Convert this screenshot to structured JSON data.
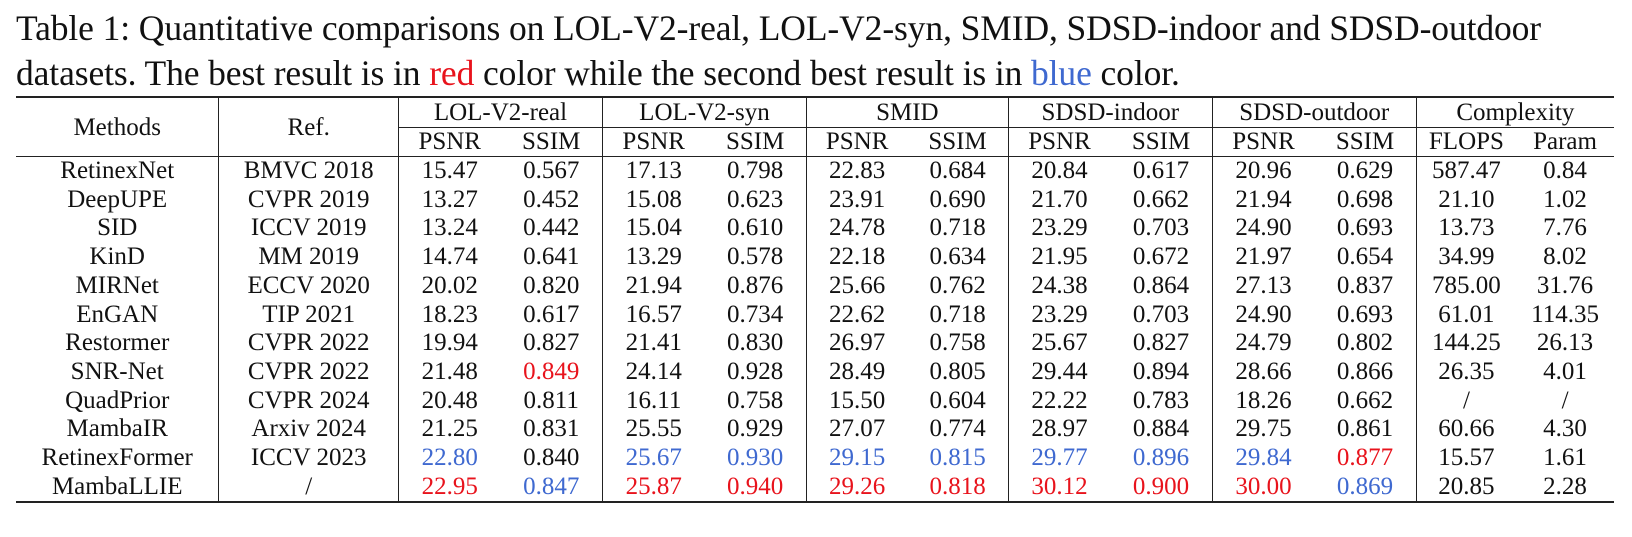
{
  "caption": {
    "prefix": "Table 1: Quantitative comparisons on LOL-V2-real, LOL-V2-syn, SMID, SDSD-indoor and SDSD-outdoor datasets. The best result is in ",
    "red_word": "red",
    "middle": " color while the second best result is in ",
    "blue_word": "blue",
    "suffix": " color."
  },
  "header": {
    "methods": "Methods",
    "ref": "Ref.",
    "groups": [
      "LOL-V2-real",
      "LOL-V2-syn",
      "SMID",
      "SDSD-indoor",
      "SDSD-outdoor",
      "Complexity"
    ],
    "subcols": [
      "PSNR",
      "SSIM",
      "PSNR",
      "SSIM",
      "PSNR",
      "SSIM",
      "PSNR",
      "SSIM",
      "PSNR",
      "SSIM",
      "FLOPS",
      "Param"
    ]
  },
  "highlight_colors": {
    "best": "#e8131c",
    "second": "#3f69d0"
  },
  "rows": [
    {
      "method": "RetinexNet",
      "ref": "BMVC 2018",
      "cells": [
        {
          "v": "15.47"
        },
        {
          "v": "0.567"
        },
        {
          "v": "17.13"
        },
        {
          "v": "0.798"
        },
        {
          "v": "22.83"
        },
        {
          "v": "0.684"
        },
        {
          "v": "20.84"
        },
        {
          "v": "0.617"
        },
        {
          "v": "20.96"
        },
        {
          "v": "0.629"
        },
        {
          "v": "587.47"
        },
        {
          "v": "0.84"
        }
      ]
    },
    {
      "method": "DeepUPE",
      "ref": "CVPR 2019",
      "cells": [
        {
          "v": "13.27"
        },
        {
          "v": "0.452"
        },
        {
          "v": "15.08"
        },
        {
          "v": "0.623"
        },
        {
          "v": "23.91"
        },
        {
          "v": "0.690"
        },
        {
          "v": "21.70"
        },
        {
          "v": "0.662"
        },
        {
          "v": "21.94"
        },
        {
          "v": "0.698"
        },
        {
          "v": "21.10"
        },
        {
          "v": "1.02"
        }
      ]
    },
    {
      "method": "SID",
      "ref": "ICCV 2019",
      "cells": [
        {
          "v": "13.24"
        },
        {
          "v": "0.442"
        },
        {
          "v": "15.04"
        },
        {
          "v": "0.610"
        },
        {
          "v": "24.78"
        },
        {
          "v": "0.718"
        },
        {
          "v": "23.29"
        },
        {
          "v": "0.703"
        },
        {
          "v": "24.90"
        },
        {
          "v": "0.693"
        },
        {
          "v": "13.73"
        },
        {
          "v": "7.76"
        }
      ]
    },
    {
      "method": "KinD",
      "ref": "MM 2019",
      "cells": [
        {
          "v": "14.74"
        },
        {
          "v": "0.641"
        },
        {
          "v": "13.29"
        },
        {
          "v": "0.578"
        },
        {
          "v": "22.18"
        },
        {
          "v": "0.634"
        },
        {
          "v": "21.95"
        },
        {
          "v": "0.672"
        },
        {
          "v": "21.97"
        },
        {
          "v": "0.654"
        },
        {
          "v": "34.99"
        },
        {
          "v": "8.02"
        }
      ]
    },
    {
      "method": "MIRNet",
      "ref": "ECCV 2020",
      "cells": [
        {
          "v": "20.02"
        },
        {
          "v": "0.820"
        },
        {
          "v": "21.94"
        },
        {
          "v": "0.876"
        },
        {
          "v": "25.66"
        },
        {
          "v": "0.762"
        },
        {
          "v": "24.38"
        },
        {
          "v": "0.864"
        },
        {
          "v": "27.13"
        },
        {
          "v": "0.837"
        },
        {
          "v": "785.00"
        },
        {
          "v": "31.76"
        }
      ]
    },
    {
      "method": "EnGAN",
      "ref": "TIP 2021",
      "cells": [
        {
          "v": "18.23"
        },
        {
          "v": "0.617"
        },
        {
          "v": "16.57"
        },
        {
          "v": "0.734"
        },
        {
          "v": "22.62"
        },
        {
          "v": "0.718"
        },
        {
          "v": "23.29"
        },
        {
          "v": "0.703"
        },
        {
          "v": "24.90"
        },
        {
          "v": "0.693"
        },
        {
          "v": "61.01"
        },
        {
          "v": "114.35"
        }
      ]
    },
    {
      "method": "Restormer",
      "ref": "CVPR 2022",
      "cells": [
        {
          "v": "19.94"
        },
        {
          "v": "0.827"
        },
        {
          "v": "21.41"
        },
        {
          "v": "0.830"
        },
        {
          "v": "26.97"
        },
        {
          "v": "0.758"
        },
        {
          "v": "25.67"
        },
        {
          "v": "0.827"
        },
        {
          "v": "24.79"
        },
        {
          "v": "0.802"
        },
        {
          "v": "144.25"
        },
        {
          "v": "26.13"
        }
      ]
    },
    {
      "method": "SNR-Net",
      "ref": "CVPR 2022",
      "cells": [
        {
          "v": "21.48"
        },
        {
          "v": "0.849",
          "c": "red"
        },
        {
          "v": "24.14"
        },
        {
          "v": "0.928"
        },
        {
          "v": "28.49"
        },
        {
          "v": "0.805"
        },
        {
          "v": "29.44"
        },
        {
          "v": "0.894"
        },
        {
          "v": "28.66"
        },
        {
          "v": "0.866"
        },
        {
          "v": "26.35"
        },
        {
          "v": "4.01"
        }
      ]
    },
    {
      "method": "QuadPrior",
      "ref": "CVPR 2024",
      "cells": [
        {
          "v": "20.48"
        },
        {
          "v": "0.811"
        },
        {
          "v": "16.11"
        },
        {
          "v": "0.758"
        },
        {
          "v": "15.50"
        },
        {
          "v": "0.604"
        },
        {
          "v": "22.22"
        },
        {
          "v": "0.783"
        },
        {
          "v": "18.26"
        },
        {
          "v": "0.662"
        },
        {
          "v": "/"
        },
        {
          "v": "/"
        }
      ]
    },
    {
      "method": "MambaIR",
      "ref": "Arxiv 2024",
      "cells": [
        {
          "v": "21.25"
        },
        {
          "v": "0.831"
        },
        {
          "v": "25.55"
        },
        {
          "v": "0.929"
        },
        {
          "v": "27.07"
        },
        {
          "v": "0.774"
        },
        {
          "v": "28.97"
        },
        {
          "v": "0.884"
        },
        {
          "v": "29.75"
        },
        {
          "v": "0.861"
        },
        {
          "v": "60.66"
        },
        {
          "v": "4.30"
        }
      ]
    },
    {
      "method": "RetinexFormer",
      "ref": "ICCV 2023",
      "cells": [
        {
          "v": "22.80",
          "c": "blue"
        },
        {
          "v": "0.840"
        },
        {
          "v": "25.67",
          "c": "blue"
        },
        {
          "v": "0.930",
          "c": "blue"
        },
        {
          "v": "29.15",
          "c": "blue"
        },
        {
          "v": "0.815",
          "c": "blue"
        },
        {
          "v": "29.77",
          "c": "blue"
        },
        {
          "v": "0.896",
          "c": "blue"
        },
        {
          "v": "29.84",
          "c": "blue"
        },
        {
          "v": "0.877",
          "c": "red"
        },
        {
          "v": "15.57"
        },
        {
          "v": "1.61"
        }
      ]
    },
    {
      "method": "MambaLLIE",
      "ref": "/",
      "cells": [
        {
          "v": "22.95",
          "c": "red"
        },
        {
          "v": "0.847",
          "c": "blue"
        },
        {
          "v": "25.87",
          "c": "red"
        },
        {
          "v": "0.940",
          "c": "red"
        },
        {
          "v": "29.26",
          "c": "red"
        },
        {
          "v": "0.818",
          "c": "red"
        },
        {
          "v": "30.12",
          "c": "red"
        },
        {
          "v": "0.900",
          "c": "red"
        },
        {
          "v": "30.00",
          "c": "red"
        },
        {
          "v": "0.869",
          "c": "blue"
        },
        {
          "v": "20.85"
        },
        {
          "v": "2.28"
        }
      ]
    }
  ]
}
